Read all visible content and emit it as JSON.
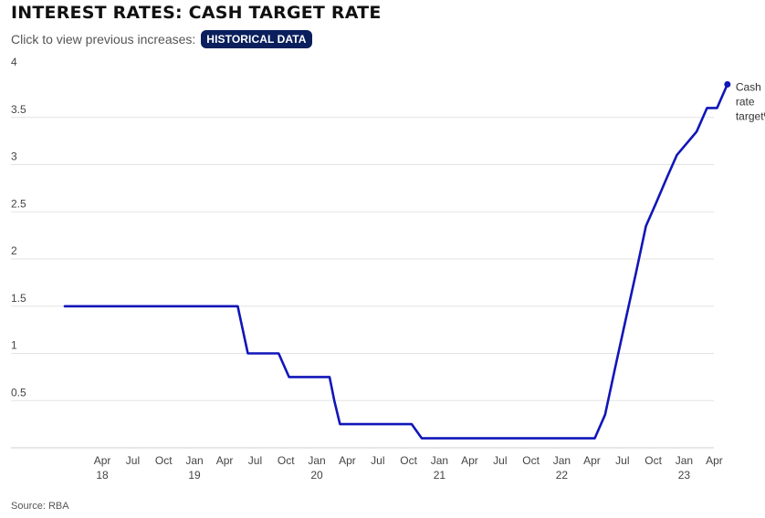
{
  "header": {
    "title": "INTEREST RATES: CASH TARGET RATE",
    "subtitle": "Click to view previous increases:",
    "button_label": "HISTORICAL DATA"
  },
  "footer": {
    "source": "Source: RBA"
  },
  "colors": {
    "line": "#1016b8",
    "grid": "#e3e3e3",
    "button_bg": "#0a1f5c"
  },
  "chart_data": {
    "type": "line",
    "title": "INTEREST RATES: CASH TARGET RATE",
    "ylim": [
      0,
      4
    ],
    "y_ticks": [
      "0.5",
      "1",
      "1.5",
      "2",
      "2.5",
      "3",
      "3.5",
      "4"
    ],
    "y_tick_values": [
      0.5,
      1,
      1.5,
      2,
      2.5,
      3,
      3.5,
      4
    ],
    "x_ticks": [
      {
        "date": "2018-04",
        "label": "Apr",
        "year": "18"
      },
      {
        "date": "2018-07",
        "label": "Jul",
        "year": ""
      },
      {
        "date": "2018-10",
        "label": "Oct",
        "year": ""
      },
      {
        "date": "2019-01",
        "label": "Jan",
        "year": "19"
      },
      {
        "date": "2019-04",
        "label": "Apr",
        "year": ""
      },
      {
        "date": "2019-07",
        "label": "Jul",
        "year": ""
      },
      {
        "date": "2019-10",
        "label": "Oct",
        "year": ""
      },
      {
        "date": "2020-01",
        "label": "Jan",
        "year": "20"
      },
      {
        "date": "2020-04",
        "label": "Apr",
        "year": ""
      },
      {
        "date": "2020-07",
        "label": "Jul",
        "year": ""
      },
      {
        "date": "2020-10",
        "label": "Oct",
        "year": ""
      },
      {
        "date": "2021-01",
        "label": "Jan",
        "year": "21"
      },
      {
        "date": "2021-04",
        "label": "Apr",
        "year": ""
      },
      {
        "date": "2021-07",
        "label": "Jul",
        "year": ""
      },
      {
        "date": "2021-10",
        "label": "Oct",
        "year": ""
      },
      {
        "date": "2022-01",
        "label": "Jan",
        "year": "22"
      },
      {
        "date": "2022-04",
        "label": "Apr",
        "year": ""
      },
      {
        "date": "2022-07",
        "label": "Jul",
        "year": ""
      },
      {
        "date": "2022-10",
        "label": "Oct",
        "year": ""
      },
      {
        "date": "2023-01",
        "label": "Jan",
        "year": "23"
      },
      {
        "date": "2023-04",
        "label": "Apr",
        "year": ""
      }
    ],
    "series": [
      {
        "name": "Cash rate target%",
        "points": [
          {
            "date": "2018-01",
            "y": 1.5
          },
          {
            "date": "2019-06",
            "y": 1.5
          },
          {
            "date": "2019-07",
            "y": 1.0
          },
          {
            "date": "2019-10",
            "y": 1.0
          },
          {
            "date": "2019-11",
            "y": 0.75
          },
          {
            "date": "2020-03",
            "y": 0.75
          },
          {
            "date": "2020-03-15",
            "y": 0.5
          },
          {
            "date": "2020-04",
            "y": 0.25
          },
          {
            "date": "2020-11",
            "y": 0.25
          },
          {
            "date": "2020-12",
            "y": 0.1
          },
          {
            "date": "2022-05",
            "y": 0.1
          },
          {
            "date": "2022-06",
            "y": 0.35
          },
          {
            "date": "2022-07",
            "y": 0.85
          },
          {
            "date": "2022-08",
            "y": 1.35
          },
          {
            "date": "2022-09",
            "y": 1.85
          },
          {
            "date": "2022-10",
            "y": 2.35
          },
          {
            "date": "2022-11",
            "y": 2.6
          },
          {
            "date": "2022-12",
            "y": 2.85
          },
          {
            "date": "2023-01",
            "y": 3.1
          },
          {
            "date": "2023-03",
            "y": 3.35
          },
          {
            "date": "2023-04",
            "y": 3.6
          },
          {
            "date": "2023-05",
            "y": 3.6
          },
          {
            "date": "2023-06",
            "y": 3.85
          }
        ]
      }
    ],
    "end_label_lines": [
      "Cash",
      "rate",
      "target%"
    ],
    "grid": true
  }
}
